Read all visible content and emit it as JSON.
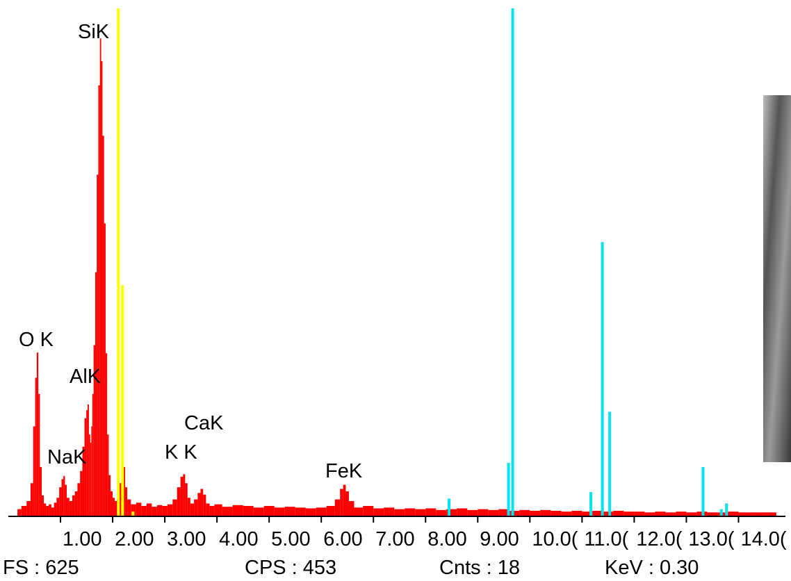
{
  "chart_data": {
    "type": "spectrum",
    "xlim": [
      0,
      14.9
    ],
    "ylim": [
      0,
      625
    ],
    "xticks": [
      {
        "value": 1,
        "label": "1.00"
      },
      {
        "value": 2,
        "label": "2.00"
      },
      {
        "value": 3,
        "label": "3.00"
      },
      {
        "value": 4,
        "label": "4.00"
      },
      {
        "value": 5,
        "label": "5.00"
      },
      {
        "value": 6,
        "label": "6.00"
      },
      {
        "value": 7,
        "label": "7.00"
      },
      {
        "value": 8,
        "label": "8.00"
      },
      {
        "value": 9,
        "label": "9.00"
      },
      {
        "value": 10,
        "label": "10.0("
      },
      {
        "value": 11,
        "label": "11.0("
      },
      {
        "value": 12,
        "label": "12.0("
      },
      {
        "value": 13,
        "label": "13.0("
      },
      {
        "value": 14,
        "label": "14.0("
      }
    ],
    "series": [
      {
        "color": "#ff0000",
        "style": "fill",
        "x": [
          0.2,
          0.3,
          0.4,
          0.45,
          0.5,
          0.53,
          0.56,
          0.59,
          0.62,
          0.66,
          0.7,
          0.75,
          0.8,
          0.85,
          0.9,
          0.95,
          1.0,
          1.04,
          1.07,
          1.1,
          1.14,
          1.2,
          1.25,
          1.3,
          1.35,
          1.4,
          1.44,
          1.48,
          1.51,
          1.53,
          1.56,
          1.58,
          1.6,
          1.62,
          1.65,
          1.68,
          1.71,
          1.74,
          1.77,
          1.79,
          1.82,
          1.85,
          1.88,
          1.91,
          1.94,
          1.98,
          2.02,
          2.06,
          2.1,
          2.15,
          2.19,
          2.22,
          2.26,
          2.3,
          2.4,
          2.5,
          2.6,
          2.7,
          2.8,
          2.9,
          3.0,
          3.1,
          3.2,
          3.27,
          3.33,
          3.37,
          3.41,
          3.46,
          3.52,
          3.6,
          3.66,
          3.71,
          3.76,
          3.82,
          3.9,
          4.0,
          4.2,
          4.4,
          4.6,
          4.8,
          5.0,
          5.2,
          5.4,
          5.6,
          5.8,
          6.0,
          6.2,
          6.32,
          6.4,
          6.44,
          6.5,
          6.56,
          6.7,
          6.9,
          7.1,
          7.3,
          7.5,
          7.7,
          7.9,
          8.1,
          8.3,
          8.5,
          8.7,
          8.9,
          9.1,
          9.3,
          9.5,
          9.7,
          9.9,
          10.1,
          10.3,
          10.5,
          10.7,
          10.9,
          11.1,
          11.3,
          11.5,
          11.7,
          11.9,
          12.1,
          12.3,
          12.5,
          12.7,
          12.9,
          13.1,
          13.3,
          13.5,
          13.7,
          13.9,
          14.1,
          14.3,
          14.5,
          14.7
        ],
        "values": [
          8,
          12,
          18,
          40,
          110,
          170,
          201,
          150,
          60,
          25,
          15,
          12,
          14,
          10,
          16,
          22,
          35,
          45,
          49,
          38,
          22,
          18,
          25,
          30,
          40,
          55,
          85,
          120,
          130,
          137,
          100,
          90,
          110,
          150,
          210,
          300,
          420,
          530,
          588,
          560,
          468,
          360,
          200,
          100,
          50,
          30,
          22,
          18,
          20,
          40,
          74,
          60,
          35,
          20,
          14,
          16,
          12,
          15,
          11,
          13,
          12,
          14,
          20,
          35,
          48,
          51,
          40,
          22,
          15,
          20,
          28,
          33,
          26,
          15,
          12,
          14,
          11,
          13,
          12,
          10,
          12,
          10,
          11,
          10,
          9,
          10,
          12,
          20,
          33,
          38,
          30,
          18,
          10,
          12,
          9,
          10,
          8,
          9,
          8,
          9,
          7,
          8,
          9,
          7,
          8,
          7,
          8,
          6,
          7,
          6,
          7,
          6,
          5,
          6,
          5,
          6,
          5,
          6,
          5,
          5,
          4,
          5,
          4,
          5,
          4,
          5,
          4,
          4,
          5,
          4,
          4,
          4,
          4
        ]
      },
      {
        "color": "#ffff00",
        "style": "marker",
        "x": [
          2.11,
          2.19,
          2.39
        ],
        "values": [
          625,
          284,
          5
        ]
      },
      {
        "color": "#00e5ee",
        "style": "marker",
        "x": [
          8.45,
          9.59,
          9.67,
          11.17,
          11.39,
          11.53,
          13.32,
          13.67,
          13.77
        ],
        "values": [
          21,
          65,
          625,
          29,
          337,
          128,
          60,
          8,
          15
        ]
      }
    ],
    "annotations": [
      "SiK",
      "O K",
      "AlK",
      "NaK",
      "CaK",
      "K K",
      "FeK"
    ]
  },
  "status": [
    "FS : 625",
    "CPS : 453",
    "Cnts : 18",
    "KeV : 0.30"
  ]
}
